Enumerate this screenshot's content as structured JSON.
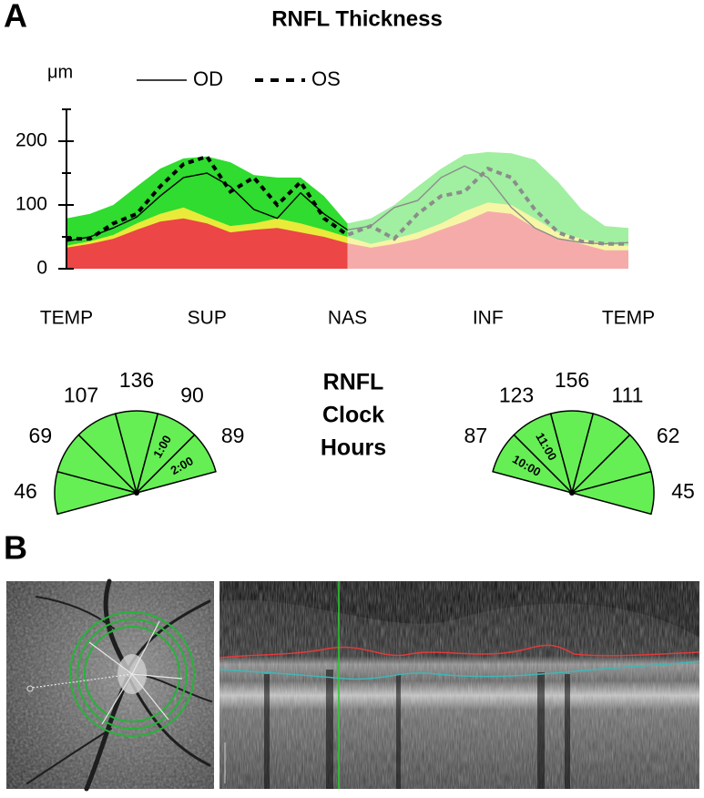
{
  "figure": {
    "panel_a_label": "A",
    "panel_b_label": "B"
  },
  "chart_data": {
    "type": "line",
    "title": "RNFL Thickness",
    "y_label": "μm",
    "categories": [
      "TEMP",
      null,
      null,
      null,
      null,
      null,
      "SUP",
      null,
      null,
      null,
      null,
      null,
      "NAS",
      null,
      null,
      null,
      null,
      null,
      "INF",
      null,
      null,
      null,
      null,
      null,
      "TEMP"
    ],
    "ylim": [
      0,
      250
    ],
    "yticks": [
      0,
      100,
      200
    ],
    "minor_yticks": [
      50,
      150,
      250
    ],
    "series": [
      {
        "name": "OD",
        "color": "#000000",
        "dash": false,
        "values": [
          43,
          50,
          64,
          81,
          114,
          143,
          150,
          129,
          93,
          79,
          119,
          86,
          61,
          67,
          96,
          107,
          143,
          161,
          143,
          96,
          64,
          47,
          41,
          39,
          41
        ]
      },
      {
        "name": "OS",
        "color": "#000000",
        "dash": true,
        "values": [
          47,
          47,
          71,
          86,
          129,
          164,
          176,
          121,
          143,
          100,
          136,
          79,
          53,
          67,
          47,
          86,
          114,
          121,
          157,
          143,
          93,
          57,
          43,
          39,
          39
        ]
      }
    ],
    "bands": [
      {
        "color": "#2fdc2f",
        "values": [
          79,
          86,
          100,
          129,
          157,
          173,
          176,
          167,
          147,
          143,
          143,
          114,
          71,
          79,
          100,
          129,
          157,
          179,
          183,
          181,
          171,
          136,
          93,
          67,
          64
        ]
      },
      {
        "color": "#eaea3a",
        "values": [
          36,
          43,
          53,
          71,
          86,
          96,
          81,
          67,
          71,
          79,
          71,
          61,
          50,
          39,
          47,
          57,
          71,
          90,
          104,
          100,
          79,
          57,
          47,
          39,
          36
        ]
      },
      {
        "color": "#ec4646",
        "values": [
          33,
          39,
          47,
          61,
          74,
          79,
          71,
          57,
          61,
          64,
          57,
          50,
          40,
          33,
          39,
          47,
          61,
          74,
          90,
          86,
          64,
          47,
          39,
          29,
          29
        ]
      }
    ],
    "legend": "top"
  },
  "clock_hours": {
    "title": [
      "RNFL",
      "Clock",
      "Hours"
    ],
    "color": "#66ee55",
    "eyes": [
      {
        "values": [
          46,
          69,
          107,
          136,
          90,
          89
        ],
        "sector_labels": [
          null,
          null,
          null,
          null,
          "1:00",
          "2:00"
        ]
      },
      {
        "values": [
          87,
          123,
          156,
          111,
          62,
          45
        ],
        "sector_labels": [
          "10:00",
          "11:00",
          null,
          null,
          null,
          null
        ]
      }
    ]
  }
}
